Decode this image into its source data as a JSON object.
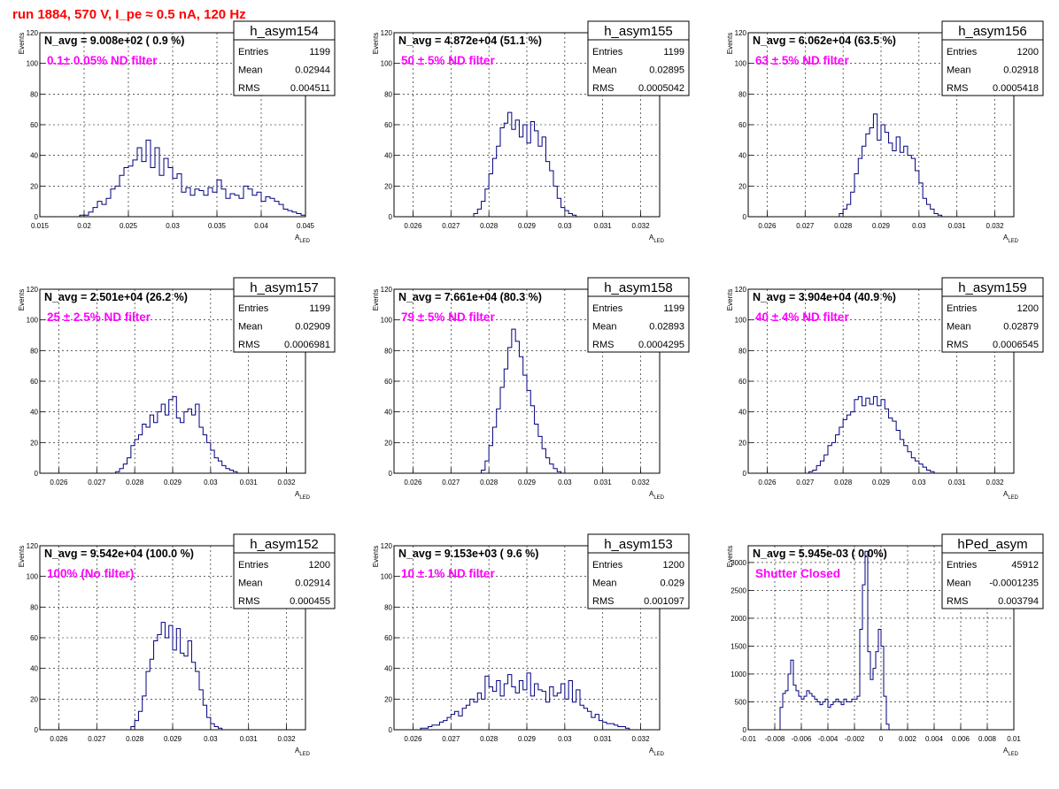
{
  "page_title": "run 1884,   570 V, I_pe ≈ 0.5 nA, 120 Hz",
  "colors": {
    "title": "#ff0000",
    "annotation": "#ff00ff",
    "histogram_line": "#000080",
    "grid": "#000000",
    "frame": "#000000"
  },
  "y_axis_label": "Events",
  "x_axis_label": {
    "main": "A",
    "sub": "LED"
  },
  "stats_labels": {
    "entries": "Entries",
    "mean": "Mean",
    "rms": "RMS"
  },
  "chart_data": [
    {
      "type": "bar",
      "histogram": true,
      "name": "h_asym154",
      "n_avg": "N_avg = 9.008e+02 ( 0.9 %)",
      "annotation": "0.1± 0.05% ND filter",
      "stats": {
        "entries": "1199",
        "mean": "0.02944",
        "rms": "0.004511"
      },
      "xlim": [
        0.015,
        0.045
      ],
      "ylim": [
        0,
        120
      ],
      "x_ticks": [
        0.015,
        0.02,
        0.025,
        0.03,
        0.035,
        0.04,
        0.045
      ],
      "x_tick_labels": [
        "0.015",
        "0.02",
        "0.025",
        "0.03",
        "0.035",
        "0.04",
        "0.045"
      ],
      "y_ticks": [
        0,
        20,
        40,
        60,
        80,
        100,
        120
      ],
      "y_tick_labels": [
        "0",
        "20",
        "40",
        "60",
        "80",
        "100",
        "120"
      ],
      "bin_width": 0.0005,
      "bin_start": 0.0195,
      "values": [
        1,
        1,
        3,
        6,
        10,
        8,
        12,
        18,
        20,
        27,
        32,
        33,
        37,
        45,
        36,
        50,
        32,
        45,
        27,
        38,
        32,
        25,
        28,
        16,
        19,
        14,
        18,
        17,
        14,
        19,
        16,
        24,
        18,
        12,
        15,
        14,
        12,
        20,
        18,
        14,
        16,
        10,
        13,
        12,
        10,
        8,
        5,
        4,
        3,
        2,
        1
      ]
    },
    {
      "type": "bar",
      "histogram": true,
      "name": "h_asym155",
      "n_avg": "N_avg = 4.872e+04 (51.1 %)",
      "annotation": "50 ± 5% ND filter",
      "stats": {
        "entries": "1199",
        "mean": "0.02895",
        "rms": "0.0005042"
      },
      "xlim": [
        0.0255,
        0.0325
      ],
      "ylim": [
        0,
        120
      ],
      "x_ticks": [
        0.026,
        0.027,
        0.028,
        0.029,
        0.03,
        0.031,
        0.032
      ],
      "x_tick_labels": [
        "0.026",
        "0.027",
        "0.028",
        "0.029",
        "0.03",
        "0.031",
        "0.032"
      ],
      "y_ticks": [
        0,
        20,
        40,
        60,
        80,
        100,
        120
      ],
      "y_tick_labels": [
        "0",
        "20",
        "40",
        "60",
        "80",
        "100",
        "120"
      ],
      "bin_width": 0.0001,
      "bin_start": 0.0276,
      "values": [
        2,
        5,
        10,
        18,
        28,
        38,
        46,
        58,
        61,
        68,
        57,
        63,
        52,
        60,
        48,
        62,
        56,
        46,
        52,
        36,
        30,
        20,
        12,
        6,
        4,
        2,
        1
      ]
    },
    {
      "type": "bar",
      "histogram": true,
      "name": "h_asym156",
      "n_avg": "N_avg = 6.062e+04 (63.5 %)",
      "annotation": "63 ± 5% ND filter",
      "stats": {
        "entries": "1200",
        "mean": "0.02918",
        "rms": "0.0005418"
      },
      "xlim": [
        0.0255,
        0.0325
      ],
      "ylim": [
        0,
        120
      ],
      "x_ticks": [
        0.026,
        0.027,
        0.028,
        0.029,
        0.03,
        0.031,
        0.032
      ],
      "x_tick_labels": [
        "0.026",
        "0.027",
        "0.028",
        "0.029",
        "0.03",
        "0.031",
        "0.032"
      ],
      "y_ticks": [
        0,
        20,
        40,
        60,
        80,
        100,
        120
      ],
      "y_tick_labels": [
        "0",
        "20",
        "40",
        "60",
        "80",
        "100",
        "120"
      ],
      "bin_width": 0.0001,
      "bin_start": 0.0279,
      "values": [
        2,
        5,
        8,
        16,
        28,
        38,
        46,
        54,
        58,
        67,
        50,
        60,
        55,
        48,
        43,
        52,
        42,
        46,
        40,
        38,
        30,
        22,
        12,
        8,
        5,
        2,
        1
      ]
    },
    {
      "type": "bar",
      "histogram": true,
      "name": "h_asym157",
      "n_avg": "N_avg = 2.501e+04 (26.2 %)",
      "annotation": "25 ± 2.5% ND filter",
      "stats": {
        "entries": "1199",
        "mean": "0.02909",
        "rms": "0.0006981"
      },
      "xlim": [
        0.0255,
        0.0325
      ],
      "ylim": [
        0,
        120
      ],
      "x_ticks": [
        0.026,
        0.027,
        0.028,
        0.029,
        0.03,
        0.031,
        0.032
      ],
      "x_tick_labels": [
        "0.026",
        "0.027",
        "0.028",
        "0.029",
        "0.03",
        "0.031",
        "0.032"
      ],
      "y_ticks": [
        0,
        20,
        40,
        60,
        80,
        100,
        120
      ],
      "y_tick_labels": [
        "0",
        "20",
        "40",
        "60",
        "80",
        "100",
        "120"
      ],
      "bin_width": 0.0001,
      "bin_start": 0.0275,
      "values": [
        1,
        3,
        6,
        10,
        18,
        22,
        25,
        32,
        30,
        38,
        33,
        40,
        45,
        38,
        48,
        50,
        36,
        33,
        40,
        42,
        38,
        45,
        30,
        25,
        20,
        15,
        10,
        8,
        5,
        3,
        2,
        1
      ]
    },
    {
      "type": "bar",
      "histogram": true,
      "name": "h_asym158",
      "n_avg": "N_avg = 7.661e+04 (80.3 %)",
      "annotation": "79 ± 5% ND filter",
      "stats": {
        "entries": "1199",
        "mean": "0.02893",
        "rms": "0.0004295"
      },
      "xlim": [
        0.0255,
        0.0325
      ],
      "ylim": [
        0,
        120
      ],
      "x_ticks": [
        0.026,
        0.027,
        0.028,
        0.029,
        0.03,
        0.031,
        0.032
      ],
      "x_tick_labels": [
        "0.026",
        "0.027",
        "0.028",
        "0.029",
        "0.03",
        "0.031",
        "0.032"
      ],
      "y_ticks": [
        0,
        20,
        40,
        60,
        80,
        100,
        120
      ],
      "y_tick_labels": [
        "0",
        "20",
        "40",
        "60",
        "80",
        "100",
        "120"
      ],
      "bin_width": 0.0001,
      "bin_start": 0.0278,
      "values": [
        2,
        8,
        18,
        30,
        42,
        56,
        68,
        82,
        94,
        86,
        76,
        64,
        54,
        44,
        32,
        24,
        16,
        10,
        6,
        3,
        1
      ]
    },
    {
      "type": "bar",
      "histogram": true,
      "name": "h_asym159",
      "n_avg": "N_avg = 3.904e+04 (40.9 %)",
      "annotation": "40 ± 4% ND filter",
      "stats": {
        "entries": "1200",
        "mean": "0.02879",
        "rms": "0.0006545"
      },
      "xlim": [
        0.0255,
        0.0325
      ],
      "ylim": [
        0,
        120
      ],
      "x_ticks": [
        0.026,
        0.027,
        0.028,
        0.029,
        0.03,
        0.031,
        0.032
      ],
      "x_tick_labels": [
        "0.026",
        "0.027",
        "0.028",
        "0.029",
        "0.03",
        "0.031",
        "0.032"
      ],
      "y_ticks": [
        0,
        20,
        40,
        60,
        80,
        100,
        120
      ],
      "y_tick_labels": [
        "0",
        "20",
        "40",
        "60",
        "80",
        "100",
        "120"
      ],
      "bin_width": 0.0001,
      "bin_start": 0.0271,
      "values": [
        1,
        2,
        5,
        8,
        12,
        18,
        20,
        25,
        30,
        35,
        38,
        40,
        48,
        50,
        44,
        49,
        45,
        50,
        44,
        48,
        42,
        36,
        34,
        28,
        22,
        18,
        14,
        10,
        8,
        6,
        4,
        2,
        1
      ]
    },
    {
      "type": "bar",
      "histogram": true,
      "name": "h_asym152",
      "n_avg": "N_avg = 9.542e+04 (100.0 %)",
      "annotation": "100% (No filter)",
      "stats": {
        "entries": "1200",
        "mean": "0.02914",
        "rms": "0.000455"
      },
      "xlim": [
        0.0255,
        0.0325
      ],
      "ylim": [
        0,
        120
      ],
      "x_ticks": [
        0.026,
        0.027,
        0.028,
        0.029,
        0.03,
        0.031,
        0.032
      ],
      "x_tick_labels": [
        "0.026",
        "0.027",
        "0.028",
        "0.029",
        "0.03",
        "0.031",
        "0.032"
      ],
      "y_ticks": [
        0,
        20,
        40,
        60,
        80,
        100,
        120
      ],
      "y_tick_labels": [
        "0",
        "20",
        "40",
        "60",
        "80",
        "100",
        "120"
      ],
      "bin_width": 0.0001,
      "bin_start": 0.0279,
      "values": [
        2,
        6,
        12,
        22,
        38,
        46,
        58,
        62,
        70,
        60,
        68,
        52,
        66,
        50,
        48,
        58,
        44,
        38,
        26,
        16,
        8,
        4,
        2,
        1
      ]
    },
    {
      "type": "bar",
      "histogram": true,
      "name": "h_asym153",
      "n_avg": "N_avg = 9.153e+03 ( 9.6 %)",
      "annotation": "10 ± 1% ND filter",
      "stats": {
        "entries": "1200",
        "mean": "0.029",
        "rms": "0.001097"
      },
      "xlim": [
        0.0255,
        0.0325
      ],
      "ylim": [
        0,
        120
      ],
      "x_ticks": [
        0.026,
        0.027,
        0.028,
        0.029,
        0.03,
        0.031,
        0.032
      ],
      "x_tick_labels": [
        "0.026",
        "0.027",
        "0.028",
        "0.029",
        "0.03",
        "0.031",
        "0.032"
      ],
      "y_ticks": [
        0,
        20,
        40,
        60,
        80,
        100,
        120
      ],
      "y_tick_labels": [
        "0",
        "20",
        "40",
        "60",
        "80",
        "100",
        "120"
      ],
      "bin_width": 0.0001,
      "bin_start": 0.0262,
      "values": [
        1,
        1,
        2,
        3,
        3,
        5,
        6,
        8,
        10,
        12,
        9,
        14,
        16,
        20,
        18,
        24,
        20,
        35,
        28,
        25,
        32,
        22,
        30,
        36,
        28,
        24,
        32,
        26,
        37,
        22,
        30,
        26,
        25,
        18,
        28,
        22,
        24,
        30,
        20,
        32,
        18,
        26,
        16,
        14,
        12,
        8,
        10,
        6,
        5,
        4,
        4,
        3,
        2,
        2,
        1
      ]
    },
    {
      "type": "bar",
      "histogram": true,
      "name": "hPed_asym",
      "n_avg": "N_avg = 5.945e-03 ( 0.0%)",
      "annotation": "Shutter Closed",
      "stats": {
        "entries": "45912",
        "mean": "-0.0001235",
        "rms": "0.003794"
      },
      "xlim": [
        -0.01,
        0.01
      ],
      "ylim": [
        0,
        3300
      ],
      "x_ticks": [
        -0.01,
        -0.008,
        -0.006,
        -0.004,
        -0.002,
        0,
        0.002,
        0.004,
        0.006,
        0.008,
        0.01
      ],
      "x_tick_labels": [
        "-0.01",
        "-0.008",
        "-0.006",
        "-0.004",
        "-0.002",
        "0",
        "0.002",
        "0.004",
        "0.006",
        "0.008",
        "0.01"
      ],
      "y_ticks": [
        0,
        500,
        1000,
        1500,
        2000,
        2500,
        3000
      ],
      "y_tick_labels": [
        "0",
        "500",
        "1000",
        "1500",
        "2000",
        "2500",
        "3000"
      ],
      "bin_width": 0.0002,
      "bin_start": -0.0076,
      "values": [
        400,
        650,
        700,
        1000,
        1250,
        800,
        700,
        600,
        550,
        600,
        700,
        650,
        600,
        550,
        500,
        450,
        500,
        550,
        400,
        450,
        500,
        550,
        500,
        450,
        550,
        500,
        500,
        550,
        550,
        600,
        1800,
        2600,
        3200,
        1400,
        900,
        1100,
        1400,
        1800,
        1500,
        600,
        100
      ]
    }
  ]
}
